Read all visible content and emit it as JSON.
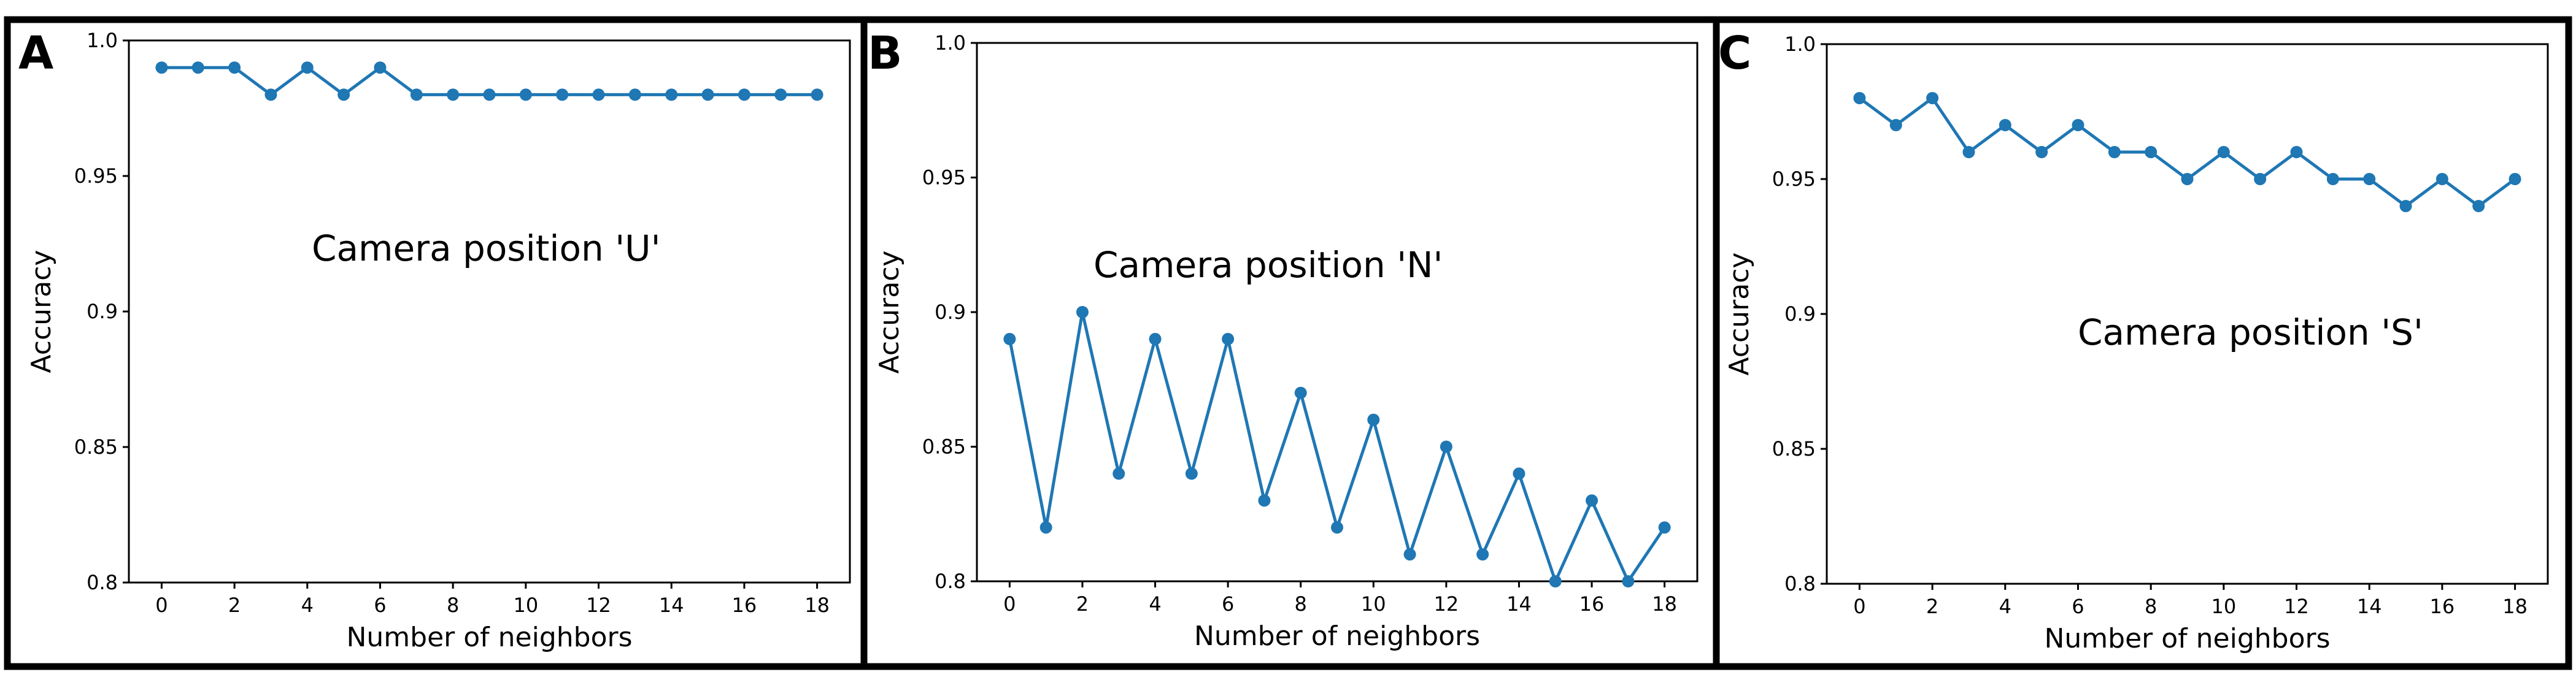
{
  "panels": [
    {
      "letter": "A"
    },
    {
      "letter": "B"
    },
    {
      "letter": "C"
    }
  ],
  "chart_data": [
    {
      "type": "line",
      "title": "",
      "xlabel": "Number of neighbors",
      "ylabel": "Accuracy",
      "annotation": "Camera position 'U'",
      "x": [
        0,
        1,
        2,
        3,
        4,
        5,
        6,
        7,
        8,
        9,
        10,
        11,
        12,
        13,
        14,
        15,
        16,
        17,
        18
      ],
      "series": [
        {
          "values": [
            0.99,
            0.99,
            0.99,
            0.98,
            0.99,
            0.98,
            0.99,
            0.98,
            0.98,
            0.98,
            0.98,
            0.98,
            0.98,
            0.98,
            0.98,
            0.98,
            0.98,
            0.98,
            0.98
          ]
        }
      ],
      "xlim": [
        -0.9,
        18.9
      ],
      "ylim": [
        0.8,
        1.0
      ],
      "xticks": [
        "0",
        "2",
        "4",
        "6",
        "8",
        "10",
        "12",
        "14",
        "16",
        "18"
      ],
      "yticks": [
        "0.8",
        "0.85",
        "0.9",
        "0.95",
        "1.0"
      ],
      "color": "#1f77b4",
      "grid": false
    },
    {
      "type": "line",
      "title": "",
      "xlabel": "Number of neighbors",
      "ylabel": "Accuracy",
      "annotation": "Camera position 'N'",
      "x": [
        0,
        1,
        2,
        3,
        4,
        5,
        6,
        7,
        8,
        9,
        10,
        11,
        12,
        13,
        14,
        15,
        16,
        17,
        18
      ],
      "series": [
        {
          "values": [
            0.89,
            0.82,
            0.9,
            0.84,
            0.89,
            0.84,
            0.89,
            0.83,
            0.87,
            0.82,
            0.86,
            0.81,
            0.85,
            0.81,
            0.84,
            0.8,
            0.83,
            0.8,
            0.82
          ]
        }
      ],
      "xlim": [
        -0.9,
        18.9
      ],
      "ylim": [
        0.8,
        1.0
      ],
      "xticks": [
        "0",
        "2",
        "4",
        "6",
        "8",
        "10",
        "12",
        "14",
        "16",
        "18"
      ],
      "yticks": [
        "0.8",
        "0.85",
        "0.9",
        "0.95",
        "1.0"
      ],
      "color": "#1f77b4",
      "grid": false
    },
    {
      "type": "line",
      "title": "",
      "xlabel": "Number of neighbors",
      "ylabel": "Accuracy",
      "annotation": "Camera position 'S'",
      "x": [
        0,
        1,
        2,
        3,
        4,
        5,
        6,
        7,
        8,
        9,
        10,
        11,
        12,
        13,
        14,
        15,
        16,
        17,
        18
      ],
      "series": [
        {
          "values": [
            0.98,
            0.97,
            0.98,
            0.96,
            0.97,
            0.96,
            0.97,
            0.96,
            0.96,
            0.95,
            0.96,
            0.95,
            0.96,
            0.95,
            0.95,
            0.94,
            0.95,
            0.94,
            0.95
          ]
        }
      ],
      "xlim": [
        -0.9,
        18.9
      ],
      "ylim": [
        0.8,
        1.0
      ],
      "xticks": [
        "0",
        "2",
        "4",
        "6",
        "8",
        "10",
        "12",
        "14",
        "16",
        "18"
      ],
      "yticks": [
        "0.8",
        "0.85",
        "0.9",
        "0.95",
        "1.0"
      ],
      "color": "#1f77b4",
      "grid": false
    }
  ]
}
